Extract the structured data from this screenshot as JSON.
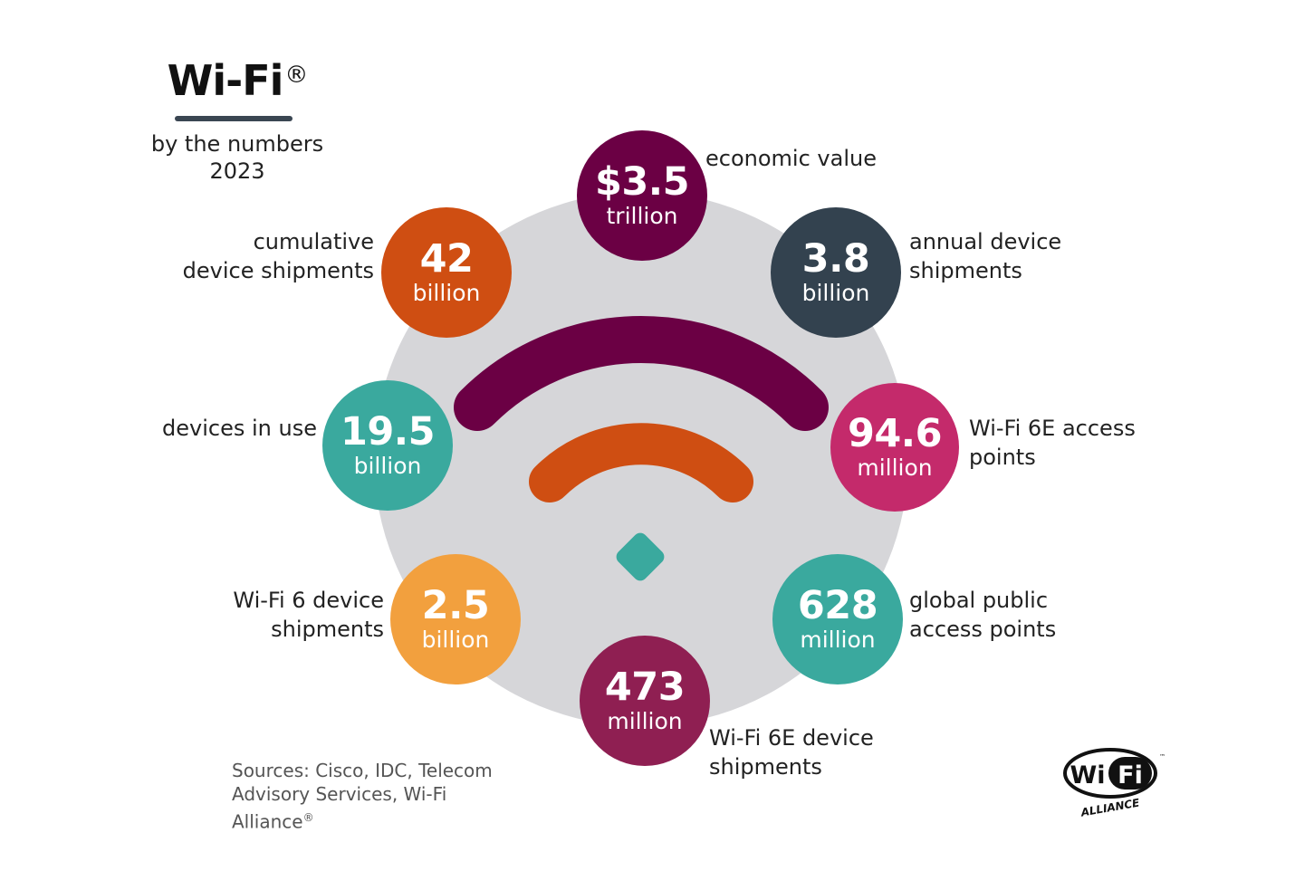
{
  "header": {
    "title": "Wi-Fi",
    "title_mark": "®",
    "subtitle_line1": "by the numbers",
    "subtitle_line2": "2023"
  },
  "stats": [
    {
      "id": "economic-value",
      "value": "$3.5",
      "unit": "trillion",
      "label": [
        "economic value"
      ],
      "color": "#6b0044"
    },
    {
      "id": "annual-device-shipments",
      "value": "3.8",
      "unit": "billion",
      "label": [
        "annual device",
        "shipments"
      ],
      "color": "#33424f"
    },
    {
      "id": "wifi-6e-access-points",
      "value": "94.6",
      "unit": "million",
      "label": [
        "Wi-Fi 6E access",
        "points"
      ],
      "color": "#c42a6b"
    },
    {
      "id": "global-public-access-points",
      "value": "628",
      "unit": "million",
      "label": [
        "global public",
        "access points"
      ],
      "color": "#3aa99e"
    },
    {
      "id": "wifi-6e-device-shipments",
      "value": "473",
      "unit": "million",
      "label": [
        "Wi-Fi 6E device",
        "shipments"
      ],
      "color": "#8f1f52"
    },
    {
      "id": "wifi-6-device-shipments",
      "value": "2.5",
      "unit": "billion",
      "label": [
        "Wi-Fi 6 device",
        "shipments"
      ],
      "color": "#f2a03e"
    },
    {
      "id": "devices-in-use",
      "value": "19.5",
      "unit": "billion",
      "label": [
        "devices in use"
      ],
      "color": "#3aa99e"
    },
    {
      "id": "cumulative-device-shipments",
      "value": "42",
      "unit": "billion",
      "label": [
        "cumulative",
        "device shipments"
      ],
      "color": "#cf4e12"
    }
  ],
  "wifi_icon": {
    "outer_arc_color": "#6b0044",
    "inner_arc_color": "#cf4e12",
    "dot_color": "#3aa99e",
    "background_color": "#d6d6d9"
  },
  "sources": {
    "line1": "Sources: Cisco, IDC, Telecom",
    "line2": "Advisory Services, Wi-Fi Alliance",
    "mark": "®"
  },
  "logo": {
    "wi": "Wi",
    "fi": "Fi",
    "alliance": "ALLIANCE",
    "tm": "™"
  }
}
